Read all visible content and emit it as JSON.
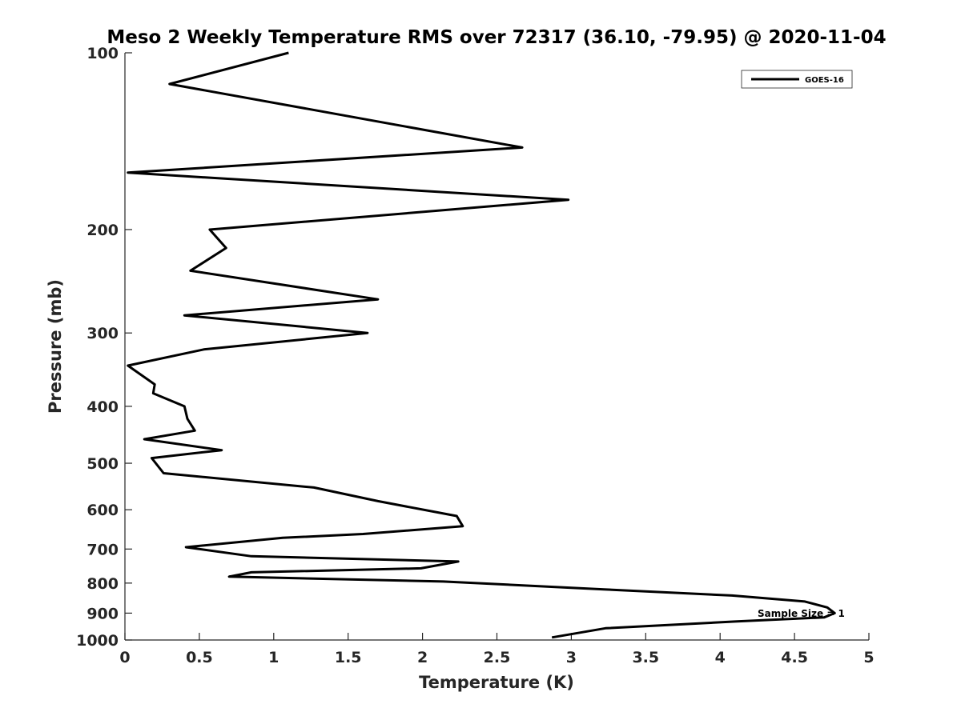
{
  "chart_data": {
    "type": "line",
    "title": "Meso 2 Weekly Temperature RMS over 72317 (36.10, -79.95) @ 2020-11-04",
    "xlabel": "Temperature (K)",
    "ylabel": "Pressure (mb)",
    "xlim": [
      0,
      5
    ],
    "ylim": [
      100,
      1000
    ],
    "y_scale": "log",
    "y_reversed": true,
    "xticks": [
      0,
      0.5,
      1,
      1.5,
      2,
      2.5,
      3,
      3.5,
      4,
      4.5,
      5
    ],
    "xtick_labels": [
      "0",
      "0.5",
      "1",
      "1.5",
      "2",
      "2.5",
      "3",
      "3.5",
      "4",
      "4.5",
      "5"
    ],
    "yticks": [
      100,
      200,
      300,
      400,
      500,
      600,
      700,
      800,
      900,
      1000
    ],
    "ytick_labels": [
      "100",
      "200",
      "300",
      "400",
      "500",
      "600",
      "700",
      "800",
      "900",
      "1000"
    ],
    "grid": false,
    "legend_position": "top-right",
    "series": [
      {
        "name": "GOES-16",
        "color": "#000000",
        "x": [
          1.1,
          0.3,
          2.67,
          0.02,
          2.98,
          0.57,
          0.68,
          0.44,
          1.7,
          0.4,
          1.63,
          0.53,
          0.02,
          0.2,
          0.19,
          0.4,
          0.42,
          0.47,
          0.13,
          0.65,
          0.18,
          0.26,
          1.27,
          1.7,
          2.23,
          2.27,
          1.6,
          1.06,
          0.41,
          0.85,
          2.24,
          1.99,
          0.85,
          0.7,
          2.14,
          3.22,
          4.08,
          4.57,
          4.72,
          4.77,
          4.7,
          4.1,
          3.23,
          2.87
        ],
        "y": [
          100,
          113,
          145,
          160,
          178,
          200,
          215,
          235,
          263,
          280,
          300,
          320,
          341,
          367,
          380,
          400,
          420,
          440,
          455,
          475,
          490,
          520,
          550,
          580,
          615,
          640,
          660,
          670,
          695,
          720,
          735,
          755,
          767,
          780,
          795,
          820,
          840,
          860,
          880,
          900,
          915,
          930,
          955,
          990
        ]
      }
    ],
    "annotations": [
      {
        "text": "Sample Size = 1"
      }
    ]
  }
}
